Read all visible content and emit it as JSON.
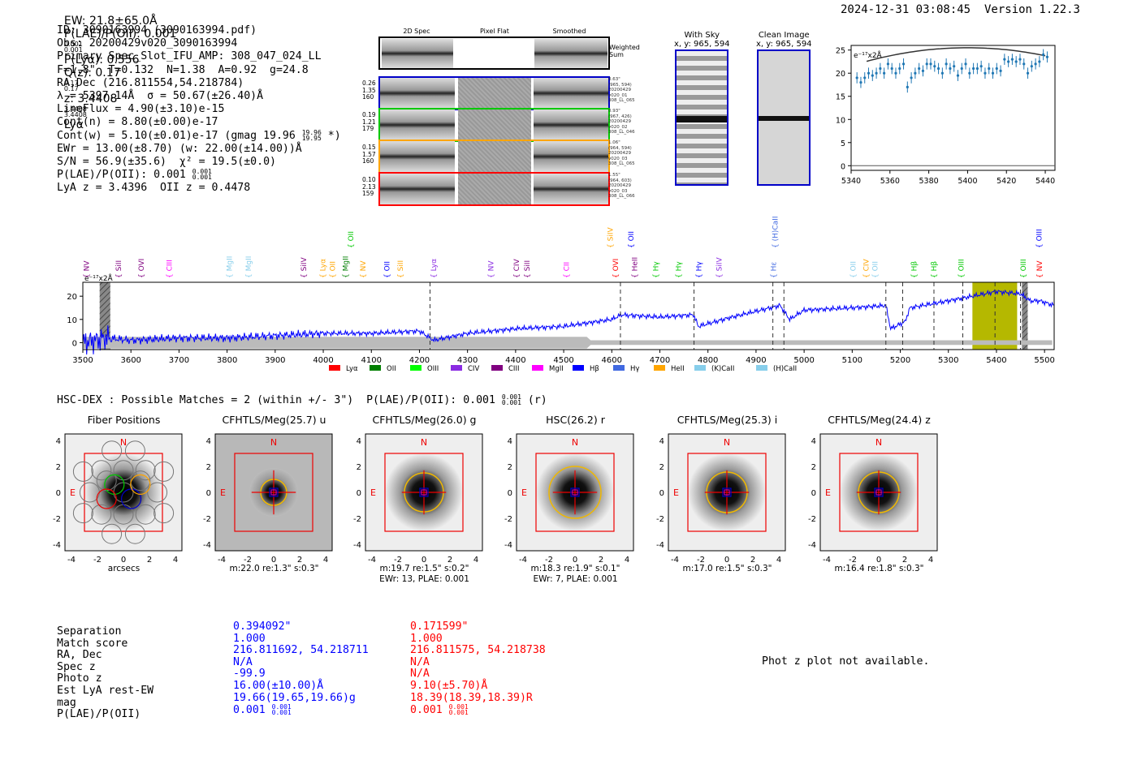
{
  "header": {
    "ew": "EW: 21.8±65.0Å",
    "plae_label": "P(LAE)/P(OII): 0.001",
    "plae_hi": "0.001",
    "plae_lo": "0.001",
    "plya": "P(Lyα): 0.556",
    "qz": "Q(z): 0.17",
    "qz_hi": "0.17",
    "qz_lo": "0.17",
    "z": "z: 3.4408",
    "z_hi": "3.4408",
    "z_lo": "3.4408",
    "z_line": "Lyα",
    "timestamp": "2024-12-31 03:08:45",
    "version": "Version 1.22.3"
  },
  "summary": {
    "id": "ID: 3090163994 (3090163994.pdf)",
    "obs": "Obs: 20200429v020_3090163994",
    "slot": "Primary Spec_Slot_IFU_AMP: 308_047_024_LL",
    "params": "F=1.8\"  T=0.132  N=1.38  A=0.92  g=24.8",
    "radec": "RA,Dec (216.811554,54.218784)",
    "lambda": "λ = 5397.14Å  σ = 50.67(±26.40)Å",
    "lineflux": "LineFlux = 4.90(±3.10)e-15",
    "contn": "Cont(n) = 8.80(±0.00)e-17",
    "contw": "Cont(w) = 5.10(±0.01)e-17 (gmag 19.96",
    "contw_hi": "19.96",
    "contw_lo": "19.95",
    "contw_end": "*)",
    "ewr": "EWr = 13.00(±8.70) (w: 22.00(±14.00))Å",
    "sn": "S/N = 56.9(±35.6)  χ² = 19.5(±0.0)",
    "plae": "P(LAE)/P(OII): 0.001",
    "plae_hi": "0.001",
    "plae_lo": "0.001",
    "lya_oii": "LyA z = 3.4396  OII z = 0.4478"
  },
  "spec_images": {
    "col_headers": [
      "2D Spec",
      "Pixel Flat",
      "Smoothed"
    ],
    "weighted_sum": "Weighted Sum",
    "rows": [
      {
        "lab1": "0.26",
        "lab2": "1.35",
        "lab3": "160",
        "info1": "0.63\"",
        "info2": "(965, 594)",
        "info3": "20200429",
        "info4": "v020_01",
        "info5": "308_LL_065",
        "color": "#0000c8"
      },
      {
        "lab1": "0.19",
        "lab2": "1.21",
        "lab3": "179",
        "info1": "0.93\"",
        "info2": "(967, 426)",
        "info3": "20200429",
        "info4": "v020_02",
        "info5": "308_LL_046",
        "color": "#00c800"
      },
      {
        "lab1": "0.15",
        "lab2": "1.57",
        "lab3": "160",
        "info1": "1.06\"",
        "info2": "(964, 594)",
        "info3": "20200429",
        "info4": "v020_03",
        "info5": "308_LL_065",
        "color": "#ffa500"
      },
      {
        "lab1": "0.10",
        "lab2": "2.13",
        "lab3": "159",
        "info1": "1.55\"",
        "info2": "(964, 603)",
        "info3": "20200429",
        "info4": "v020_03",
        "info5": "308_LL_066",
        "color": "#ff0000"
      }
    ]
  },
  "sky_panel": {
    "title": "With Sky",
    "coords": "x, y: 965, 594"
  },
  "clean_panel": {
    "title": "Clean Image",
    "coords": "x, y: 965, 594"
  },
  "emission_lines": [
    {
      "name": "NV",
      "w": 3506,
      "color": "#800080"
    },
    {
      "name": "SiII",
      "w": 3573,
      "color": "#800080"
    },
    {
      "name": "OVI",
      "w": 3620,
      "color": "#800080"
    },
    {
      "name": "CIII",
      "w": 3678,
      "color": "#ff00ff"
    },
    {
      "name": "MgII",
      "w": 3803,
      "color": "#87ceeb"
    },
    {
      "name": "MgII",
      "w": 3843,
      "color": "#87ceeb"
    },
    {
      "name": "SiIV",
      "w": 3958,
      "color": "#800080"
    },
    {
      "name": "Lyα",
      "w": 3997,
      "color": "#ffa500"
    },
    {
      "name": "OII",
      "w": 4018,
      "color": "#ffa500"
    },
    {
      "name": "MgII",
      "w": 4045,
      "color": "#007f00"
    },
    {
      "name": "NV",
      "w": 4081,
      "color": "#ffa500"
    },
    {
      "name": "OII",
      "w": 4131,
      "color": "#0000ff"
    },
    {
      "name": "SiII",
      "w": 4159,
      "color": "#ffa500"
    },
    {
      "name": "Lyα",
      "w": 4228,
      "color": "#8a2be2"
    },
    {
      "name": "NV",
      "w": 4347,
      "color": "#8a2be2"
    },
    {
      "name": "CIV",
      "w": 4400,
      "color": "#800080"
    },
    {
      "name": "SiII",
      "w": 4422,
      "color": "#800080"
    },
    {
      "name": "CII",
      "w": 4504,
      "color": "#ff00ff"
    },
    {
      "name": "OVI",
      "w": 4606,
      "color": "#ff0000"
    },
    {
      "name": "HeII",
      "w": 4646,
      "color": "#800080"
    },
    {
      "name": "Hγ",
      "w": 4690,
      "color": "#00c800"
    },
    {
      "name": "Hγ",
      "w": 4737,
      "color": "#00c800"
    },
    {
      "name": "Hγ",
      "w": 4779,
      "color": "#0000ff"
    },
    {
      "name": "SiIV",
      "w": 4822,
      "color": "#8a2be2"
    },
    {
      "name": "Hε",
      "w": 4935,
      "color": "#4169e1"
    },
    {
      "name": "OII",
      "w": 5100,
      "color": "#87ceeb"
    },
    {
      "name": "CIV",
      "w": 5127,
      "color": "#ffa500"
    },
    {
      "name": "OII",
      "w": 5146,
      "color": "#87ceeb"
    },
    {
      "name": "Hβ",
      "w": 5227,
      "color": "#00c800"
    },
    {
      "name": "Hβ",
      "w": 5268,
      "color": "#00c800"
    },
    {
      "name": "OIII",
      "w": 5325,
      "color": "#00c800"
    },
    {
      "name": "OIII",
      "w": 5454,
      "color": "#00c800"
    },
    {
      "name": "NV",
      "w": 5488,
      "color": "#ff0000"
    }
  ],
  "emission_lines_top": [
    {
      "name": "OII",
      "w": 4056,
      "color": "#00c800"
    },
    {
      "name": "SiIV",
      "w": 4595,
      "color": "#ffa500"
    },
    {
      "name": "OII",
      "w": 4638,
      "color": "#0000ff"
    },
    {
      "name": "(H)CaII",
      "w": 4938,
      "color": "#4169e1"
    },
    {
      "name": "OIII",
      "w": 5487,
      "color": "#0000ff"
    }
  ],
  "fibers_title": "HSC-DEX : Possible Matches = 2 (within +/- 3\")  P(LAE)/P(OII): 0.001",
  "fibers_title_hi": "0.001",
  "fibers_title_lo": "0.001",
  "fibers_title_end": "(r)",
  "cutouts": [
    {
      "title": "Fiber Positions",
      "foot1": "arcsecs",
      "foot2": ""
    },
    {
      "title": "CFHTLS/Meg(25.7) u",
      "foot1": "m:22.0  re:1.3\"  s:0.3\"",
      "foot2": ""
    },
    {
      "title": "CFHTLS/Meg(26.0) g",
      "foot1": "m:19.7  re:1.5\"  s:0.2\"",
      "foot2": "EWr: 13, PLAE: 0.001"
    },
    {
      "title": "HSC(26.2) r",
      "foot1": "m:18.3  re:1.9\"  s:0.1\"",
      "foot2": "EWr: 7, PLAE: 0.001"
    },
    {
      "title": "CFHTLS/Meg(25.3) i",
      "foot1": "m:17.0  re:1.5\"  s:0.3\"",
      "foot2": ""
    },
    {
      "title": "CFHTLS/Meg(24.4) z",
      "foot1": "m:16.4  re:1.8\"  s:0.3\"",
      "foot2": ""
    }
  ],
  "cutout_labels": {
    "north": "N",
    "east": "E",
    "ticks": [
      "-4",
      "-2",
      "0",
      "2",
      "4"
    ]
  },
  "catalog": {
    "labels": [
      "Separation",
      "Match score",
      "RA, Dec",
      "Spec z",
      "Photo z",
      "Est LyA rest-EW",
      "mag",
      "P(LAE)/P(OII)"
    ],
    "blue": [
      "0.394092\"",
      "1.000",
      "216.811692, 54.218711",
      "N/A",
      "-99.9",
      "16.00(±10.00)Å",
      "19.66(19.65,19.66)g",
      "0.001"
    ],
    "red": [
      "0.171599\"",
      "1.000",
      "216.811575, 54.218738",
      "N/A",
      "N/A",
      "9.10(±5.70)Å",
      "18.39(18.39,18.39)R",
      "0.001"
    ],
    "plae_hi": "0.001",
    "plae_lo": "0.001"
  },
  "phot_z_note": "Phot z plot not available.",
  "chart_data": [
    {
      "type": "line",
      "title": "",
      "ylabel": "e⁻¹⁷x2Å",
      "xlim": [
        3500,
        5520
      ],
      "ylim": [
        -3,
        26
      ],
      "xticks": [
        3500,
        3600,
        3700,
        3800,
        3900,
        4000,
        4100,
        4200,
        4300,
        4400,
        4500,
        4600,
        4700,
        4800,
        4900,
        5000,
        5100,
        5200,
        5300,
        5400,
        5500
      ],
      "yticks": [
        0,
        10,
        20
      ],
      "continuum_points": [
        [
          3500,
          0
        ],
        [
          3550,
          2
        ],
        [
          3600,
          1
        ],
        [
          3700,
          2
        ],
        [
          3800,
          2
        ],
        [
          3900,
          3
        ],
        [
          4000,
          4
        ],
        [
          4100,
          4
        ],
        [
          4200,
          5
        ],
        [
          4230,
          1
        ],
        [
          4300,
          4
        ],
        [
          4400,
          6
        ],
        [
          4500,
          7
        ],
        [
          4600,
          10
        ],
        [
          4620,
          12
        ],
        [
          4700,
          11
        ],
        [
          4770,
          12
        ],
        [
          4780,
          7
        ],
        [
          4850,
          11
        ],
        [
          4950,
          16
        ],
        [
          4970,
          10
        ],
        [
          5000,
          14
        ],
        [
          5100,
          15
        ],
        [
          5170,
          16
        ],
        [
          5180,
          6
        ],
        [
          5210,
          9
        ],
        [
          5220,
          15
        ],
        [
          5300,
          18
        ],
        [
          5400,
          22
        ],
        [
          5450,
          21
        ],
        [
          5470,
          18
        ],
        [
          5490,
          18
        ],
        [
          5520,
          16
        ]
      ],
      "dashed_lines": [
        4222,
        4618,
        4771,
        4935,
        4958,
        5170,
        5205,
        5270,
        5330,
        5397,
        5450
      ],
      "highlight_band": [
        5350,
        5443
      ],
      "hatched_regions": [
        [
          3535,
          3557
        ],
        [
          5453,
          5465
        ]
      ],
      "legend": [
        "Lyα",
        "OII",
        "OIII",
        "CIV",
        "CIII",
        "MgII",
        "Hβ",
        "Hγ",
        "HeII",
        "(K)CaII",
        "(H)CaII"
      ],
      "legend_colors": [
        "#ff0000",
        "#007f00",
        "#00ff00",
        "#8a2be2",
        "#800080",
        "#ff00ff",
        "#0000ff",
        "#4169e1",
        "#ffa500",
        "#87ceeb",
        "#87ceeb"
      ]
    },
    {
      "type": "scatter",
      "title": "",
      "ylabel": "e⁻¹⁷x2Å",
      "xlim": [
        5340,
        5445
      ],
      "ylim": [
        -1,
        26
      ],
      "xticks": [
        5340,
        5360,
        5380,
        5400,
        5420,
        5440
      ],
      "yticks": [
        0,
        5,
        10,
        15,
        20,
        25
      ],
      "x": [
        5343,
        5345,
        5347,
        5349,
        5351,
        5353,
        5355,
        5357,
        5359,
        5361,
        5363,
        5365,
        5367,
        5369,
        5371,
        5373,
        5375,
        5377,
        5379,
        5381,
        5383,
        5385,
        5387,
        5389,
        5391,
        5393,
        5395,
        5397,
        5399,
        5401,
        5403,
        5405,
        5407,
        5409,
        5411,
        5413,
        5415,
        5417,
        5419,
        5421,
        5423,
        5425,
        5427,
        5429,
        5431,
        5433,
        5435,
        5437,
        5439,
        5441
      ],
      "y": [
        19,
        18,
        19,
        20,
        19.5,
        20,
        21,
        20,
        22,
        21,
        20,
        21,
        22,
        17,
        19,
        20,
        21,
        20.5,
        22,
        22,
        21.5,
        21,
        20,
        22,
        21,
        21.5,
        19.5,
        21,
        22,
        20,
        21,
        21,
        21.5,
        20,
        21,
        20,
        21,
        20.5,
        23,
        22.5,
        23,
        22.5,
        23,
        22,
        20,
        21.5,
        22,
        22.5,
        24,
        23.5
      ],
      "model": {
        "peak_x": 5400,
        "peak_y": 25.5,
        "ends_y": 23
      }
    }
  ]
}
